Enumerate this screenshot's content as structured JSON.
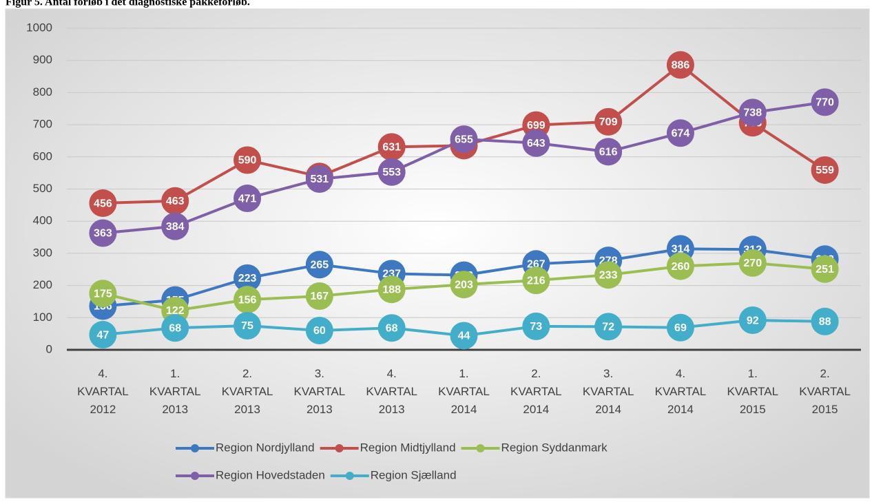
{
  "chart_data": {
    "type": "line",
    "title": "Figur 5. Antal forløb i det diagnostiske pakkeforløb.",
    "categories": [
      "4. KVARTAL 2012",
      "1. KVARTAL 2013",
      "2. KVARTAL 2013",
      "3. KVARTAL 2013",
      "4. KVARTAL 2013",
      "1. KVARTAL 2014",
      "2. KVARTAL 2014",
      "3. KVARTAL 2014",
      "4. KVARTAL 2014",
      "1. KVARTAL 2015",
      "2. KVARTAL 2015"
    ],
    "series": [
      {
        "name": "Region Nordjylland",
        "color": "#3d78c1",
        "values": [
          136,
          155,
          223,
          265,
          237,
          232,
          267,
          278,
          314,
          312,
          282
        ]
      },
      {
        "name": "Region Midtjylland",
        "color": "#c34f4c",
        "values": [
          456,
          463,
          590,
          539,
          631,
          635,
          699,
          709,
          886,
          706,
          559
        ]
      },
      {
        "name": "Region Syddanmark",
        "color": "#9bbe52",
        "values": [
          175,
          122,
          156,
          167,
          188,
          203,
          216,
          233,
          260,
          270,
          251
        ]
      },
      {
        "name": "Region Hovedstaden",
        "color": "#7e5fa8",
        "values": [
          363,
          384,
          471,
          531,
          553,
          655,
          643,
          616,
          674,
          738,
          770
        ]
      },
      {
        "name": "Region Sjælland",
        "color": "#42aec9",
        "values": [
          47,
          68,
          75,
          60,
          68,
          44,
          73,
          72,
          69,
          92,
          88
        ]
      }
    ],
    "ylim": [
      0,
      1000
    ],
    "yticks": [
      0,
      100,
      200,
      300,
      400,
      500,
      600,
      700,
      800,
      900,
      1000
    ],
    "grid": true
  }
}
